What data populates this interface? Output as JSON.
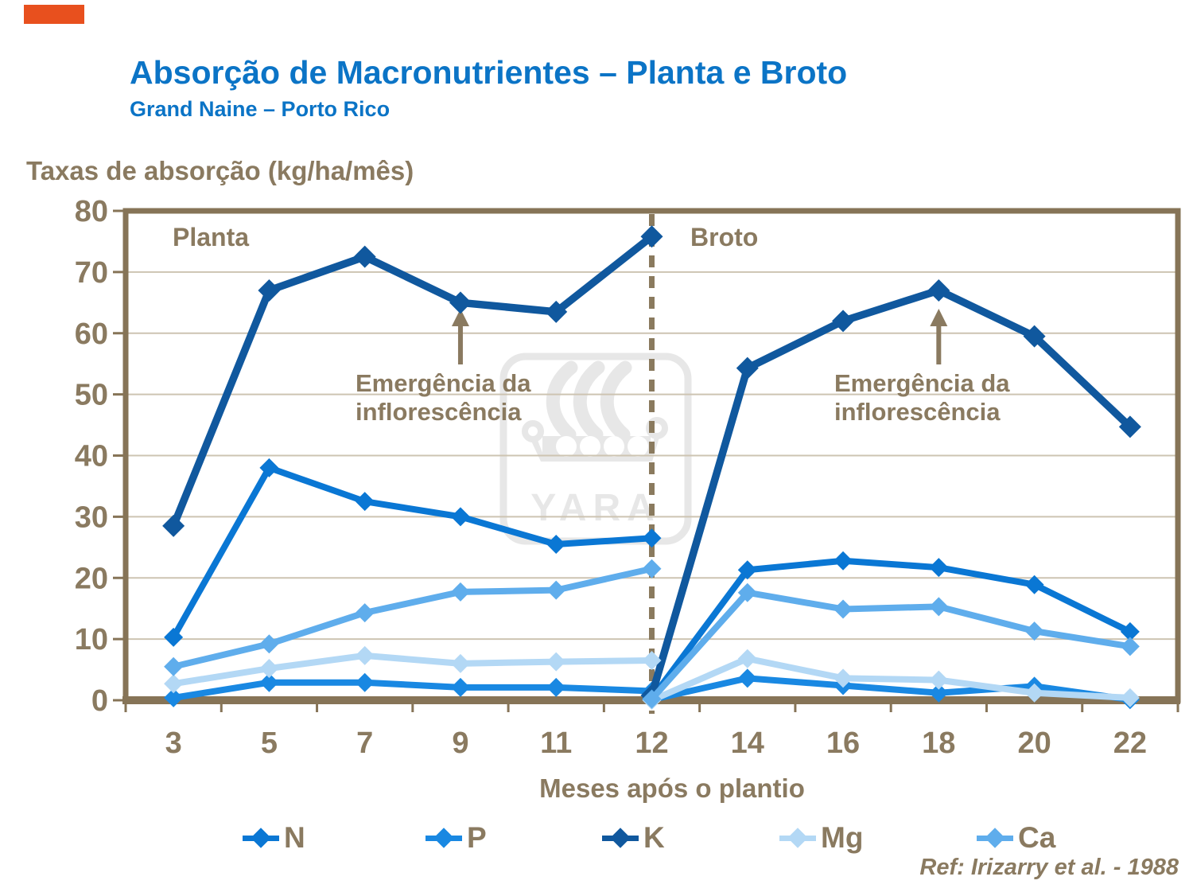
{
  "header": {
    "title": "Absorção de Macronutrientes – Planta e Broto",
    "subtitle": "Grand Naine – Porto Rico"
  },
  "ref": {
    "text": "Ref: Irizarry et al. - 1988"
  },
  "watermark": {
    "text": "YARA"
  },
  "colors": {
    "title_blue": "#0B74C6",
    "text_brown": "#8A7A60",
    "axis": "#867457",
    "grid": "#CDC4B2",
    "divider": "#8A7A5E",
    "corner_mark": "#E8501E",
    "watermark_gray": "#E7E7E7"
  },
  "chart_data": {
    "type": "line",
    "title": "Absorção de Macronutrientes – Planta e Broto",
    "subtitle": "Grand Naine – Porto Rico",
    "ylabel": "Taxas de absorção (kg/ha/mês)",
    "xlabel": "Meses após o plantio",
    "ylim": [
      0,
      80
    ],
    "ytick_step": 10,
    "grid": "horizontal gridlines on",
    "legend_position": "bottom",
    "categories": [
      3,
      5,
      7,
      9,
      11,
      12,
      14,
      16,
      18,
      20,
      22
    ],
    "planta_x": [
      3,
      5,
      7,
      9,
      11,
      12
    ],
    "broto_x": [
      12,
      14,
      16,
      18,
      20,
      22
    ],
    "divider_month": 12,
    "phase_labels": {
      "left": "Planta",
      "right": "Broto"
    },
    "annotations": [
      {
        "line1": "Emergência da",
        "line2": "inflorescência",
        "arrow_month": 9
      },
      {
        "line1": "Emergência da",
        "line2": "inflorescência",
        "arrow_month": 18
      }
    ],
    "series": [
      {
        "name": "N",
        "color": "#0A77D4",
        "planta": [
          10.3,
          38,
          32.5,
          30,
          25.5,
          26.5
        ],
        "broto": [
          0.3,
          21.3,
          22.8,
          21.7,
          18.9,
          11.2
        ]
      },
      {
        "name": "P",
        "color": "#1988E2",
        "planta": [
          0.4,
          2.9,
          2.9,
          2.1,
          2.1,
          1.5
        ],
        "broto": [
          0.1,
          3.6,
          2.4,
          1.2,
          2.3,
          0.1
        ]
      },
      {
        "name": "K",
        "color": "#10589E",
        "planta": [
          28.5,
          67,
          72.5,
          65,
          63.5,
          75.8
        ],
        "broto": [
          0.8,
          54.3,
          62,
          67,
          59.5,
          44.7
        ]
      },
      {
        "name": "Mg",
        "color": "#B3D8F5",
        "planta": [
          2.7,
          5.2,
          7.3,
          6,
          6.3,
          6.5
        ],
        "broto": [
          0,
          6.8,
          3.6,
          3.3,
          1.2,
          0.4
        ]
      },
      {
        "name": "Ca",
        "color": "#5FADEC",
        "planta": [
          5.5,
          9.2,
          14.3,
          17.7,
          18,
          21.5
        ],
        "broto": [
          0.2,
          17.6,
          14.9,
          15.3,
          11.3,
          8.8
        ]
      }
    ]
  }
}
